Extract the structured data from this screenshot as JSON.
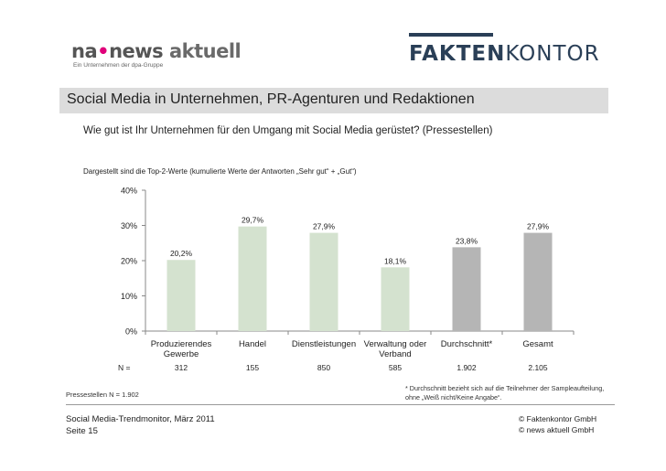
{
  "header": {
    "na_logo": {
      "prefix": "na",
      "dot": "•",
      "middle": "news",
      "suffix": "aktuell",
      "tagline": "Ein Unternehmen der dpa-Gruppe"
    },
    "fk_logo": {
      "bold": "FAKTEN",
      "light": "KONTOR"
    }
  },
  "slide": {
    "title": "Social Media in Unternehmen, PR-Agenturen und Redaktionen",
    "subtitle": "Wie gut ist Ihr Unternehmen für den Umgang mit Social Media gerüstet? (Pressestellen)",
    "note": "Dargestellt sind die Top-2-Werte (kumulierte Werte der Antworten „Sehr gut“ + „Gut“)"
  },
  "chart_data": {
    "type": "bar",
    "categories": [
      [
        "Produzierendes",
        "Gewerbe"
      ],
      [
        "Handel"
      ],
      [
        "Dienstleistungen"
      ],
      [
        "Verwaltung oder",
        "Verband"
      ],
      [
        "Durchschnitt*"
      ],
      [
        "Gesamt"
      ]
    ],
    "values": [
      20.2,
      29.7,
      27.9,
      18.1,
      23.8,
      27.9
    ],
    "value_labels": [
      "20,2%",
      "29,7%",
      "27,9%",
      "18,1%",
      "23,8%",
      "27,9%"
    ],
    "y_ticks": [
      "0%",
      "10%",
      "20%",
      "30%",
      "40%"
    ],
    "ylim": [
      0,
      40
    ],
    "n_label": "N =",
    "n_values": [
      "312",
      "155",
      "850",
      "585",
      "1.902",
      "2.105"
    ],
    "colors": {
      "segment": "#d4e2cf",
      "aggregate": "#b5b5b5"
    },
    "bar_color_keys": [
      "segment",
      "segment",
      "segment",
      "segment",
      "aggregate",
      "aggregate"
    ],
    "grid": false
  },
  "footnote": {
    "line1": "* Durchschnitt bezieht sich auf die Teilnehmer der Sampleaufteilung,",
    "line2": "ohne „Weiß nicht/Keine Angabe“."
  },
  "sample_note": "Pressestellen N = 1.902",
  "footer": {
    "left1": "Social Media-Trendmonitor, März 2011",
    "left2": "Seite 15",
    "right1": "© Faktenkontor GmbH",
    "right2": "© news aktuell GmbH"
  }
}
